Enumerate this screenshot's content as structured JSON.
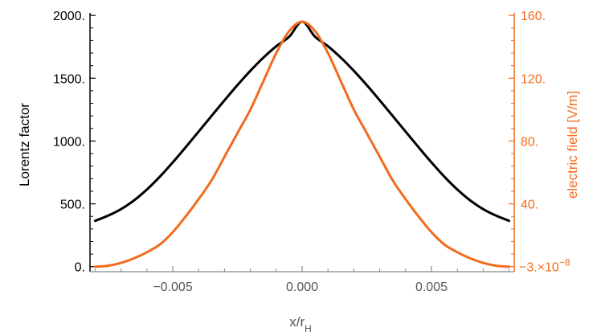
{
  "chart_data": {
    "type": "line",
    "title": "",
    "xlabel": "x/r_H",
    "xlabel_main": "x/r",
    "xlabel_sub": "H",
    "ylabel_left": "Lorentz factor",
    "ylabel_right": "electric field [V/m]",
    "xlim": [
      -0.0082,
      0.0082
    ],
    "ylim_left": [
      -40,
      2020
    ],
    "ylim_right": [
      -3.2,
      161.6
    ],
    "x_ticks": [
      -0.005,
      0,
      0.005
    ],
    "x_tick_labels": [
      "−0.005",
      "0.000",
      "0.005"
    ],
    "y_left_ticks": [
      0,
      500,
      1000,
      1500,
      2000
    ],
    "y_left_tick_labels": [
      "0.",
      "500.",
      "1000.",
      "1500.",
      "2000."
    ],
    "y_right_ticks": [
      0,
      40,
      80,
      120,
      160
    ],
    "y_right_tick_labels": [
      "40.",
      "80.",
      "120.",
      "160."
    ],
    "y_right_bottom_label_prefix": "−3.×10",
    "y_right_bottom_label_exp": "−8",
    "grid": false,
    "colors": {
      "lorentz": "#000000",
      "field": "#f26b1d",
      "axis": "#000000",
      "axis_right": "#f26b1d"
    },
    "series": [
      {
        "axis": "left",
        "color": "#000000",
        "x": [
          -0.008,
          -0.0075,
          -0.007,
          -0.0065,
          -0.006,
          -0.0055,
          -0.005,
          -0.0045,
          -0.004,
          -0.0035,
          -0.003,
          -0.0025,
          -0.002,
          -0.0015,
          -0.001,
          -0.0005,
          0.0,
          0.0005,
          0.001,
          0.0015,
          0.002,
          0.0025,
          0.003,
          0.0035,
          0.004,
          0.0045,
          0.005,
          0.0055,
          0.006,
          0.0065,
          0.007,
          0.0075,
          0.008
        ],
        "y": [
          365,
          406,
          458,
          527,
          614,
          716,
          830,
          951,
          1075,
          1200,
          1324,
          1445,
          1559,
          1663,
          1754,
          1830,
          1950,
          1830,
          1754,
          1663,
          1559,
          1445,
          1324,
          1200,
          1075,
          951,
          830,
          716,
          614,
          527,
          458,
          406,
          365
        ]
      },
      {
        "axis": "right",
        "color": "#f26b1d",
        "x": [
          -0.008,
          -0.0075,
          -0.007,
          -0.0065,
          -0.006,
          -0.0055,
          -0.005,
          -0.0045,
          -0.004,
          -0.0035,
          -0.003,
          -0.0025,
          -0.002,
          -0.0015,
          -0.001,
          -0.0005,
          0.0,
          0.0005,
          0.001,
          0.0015,
          0.002,
          0.0025,
          0.003,
          0.0035,
          0.004,
          0.0045,
          0.005,
          0.0055,
          0.006,
          0.0065,
          0.007,
          0.0075,
          0.008
        ],
        "y": [
          0.0,
          0.6,
          2.4,
          5.3,
          9.2,
          14.1,
          22.0,
          32.0,
          43.0,
          55.0,
          70.0,
          85.0,
          100.0,
          118.0,
          136.0,
          150.0,
          156.0,
          150.0,
          136.0,
          118.0,
          100.0,
          85.0,
          70.0,
          55.0,
          43.0,
          32.0,
          22.0,
          14.1,
          9.2,
          5.3,
          2.4,
          0.6,
          0.0
        ]
      }
    ]
  }
}
